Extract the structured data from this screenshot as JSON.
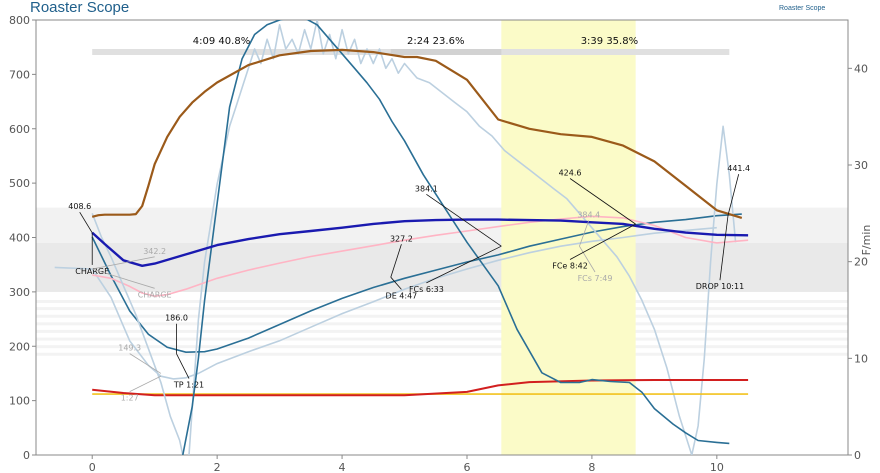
{
  "header": {
    "title": "Roaster Scope",
    "brand": "Roaster Scope"
  },
  "chart_data": {
    "type": "line",
    "x_ticks": [
      "0",
      "2",
      "4",
      "6",
      "8",
      "10"
    ],
    "y_left_ticks": [
      "0",
      "100",
      "200",
      "300",
      "400",
      "500",
      "600",
      "700",
      "800"
    ],
    "y_right_ticks": [
      "0",
      "10",
      "20",
      "30",
      "40"
    ],
    "y_left_label": "",
    "y_right_label": "F/min",
    "xlim": [
      -0.9,
      12.1
    ],
    "ylim_left": [
      0,
      800
    ],
    "ylim_right": [
      0,
      45
    ],
    "phases": {
      "bar_range": [
        0,
        10.2
      ],
      "labels": [
        {
          "text": "4:09  40.8%",
          "x": 2.07
        },
        {
          "text": "2:24  23.6%",
          "x": 5.5
        },
        {
          "text": "3:39  35.8%",
          "x": 8.28
        }
      ],
      "dry_end": 4.78,
      "highlight": [
        6.55,
        8.7
      ]
    },
    "colors": {
      "bean_temp": "#1a1ab0",
      "env_temp": "#ffb4c4",
      "exhaust": "#9b5a1a",
      "ror": "#2a6f95",
      "ror_ghost": "#bcd0e0",
      "heater": "#d21f1f",
      "fan": "#f2c21e",
      "highlight": "#fbfbc8"
    },
    "series": [
      {
        "key": "exhaust",
        "x": [
          0,
          0.1,
          0.2,
          0.4,
          0.6,
          0.7,
          0.8,
          0.9,
          1.0,
          1.2,
          1.4,
          1.6,
          1.8,
          2.0,
          2.5,
          3.0,
          3.5,
          4.0,
          4.5,
          5.0,
          5.2,
          5.5,
          6.0,
          6.5,
          7.0,
          7.5,
          8.0,
          8.5,
          9.0,
          9.5,
          10.0,
          10.4
        ],
        "y": [
          438,
          441,
          442,
          442,
          442,
          443,
          458,
          495,
          535,
          585,
          622,
          648,
          668,
          685,
          717,
          735,
          743,
          745,
          741,
          732,
          732,
          725,
          690,
          617,
          600,
          590,
          585,
          569,
          540,
          495,
          450,
          436
        ]
      },
      {
        "key": "bean_temp",
        "x": [
          0,
          0.2,
          0.5,
          0.8,
          1.0,
          1.5,
          2.0,
          2.5,
          3.0,
          3.5,
          4.0,
          4.5,
          5.0,
          5.5,
          6.0,
          6.5,
          7.0,
          7.5,
          8.0,
          8.5,
          9.0,
          9.5,
          10.0,
          10.5
        ],
        "y": [
          409,
          388,
          358,
          348,
          352,
          369,
          386,
          397,
          406,
          412,
          418,
          425,
          430,
          432,
          433,
          433,
          432,
          431,
          428,
          425,
          416,
          409,
          405,
          404
        ]
      },
      {
        "key": "env_temp",
        "x": [
          0,
          0.3,
          0.6,
          0.8,
          1.0,
          1.2,
          1.5,
          2.0,
          2.5,
          3.0,
          3.5,
          4.0,
          4.5,
          5.0,
          5.5,
          6.0,
          6.5,
          7.0,
          7.5,
          8.0,
          8.5,
          9.0,
          9.5,
          10.0,
          10.5
        ],
        "y": [
          331,
          325,
          310,
          298,
          292,
          295,
          305,
          325,
          340,
          353,
          365,
          375,
          385,
          395,
          404,
          412,
          420,
          428,
          434,
          439,
          436,
          422,
          400,
          390,
          395
        ]
      },
      {
        "key": "ror",
        "x": [
          1.45,
          1.6,
          1.7,
          1.8,
          2.0,
          2.2,
          2.4,
          2.6,
          2.8,
          3.0,
          3.2,
          3.4,
          3.6,
          3.8,
          4.0,
          4.2,
          4.4,
          4.6,
          4.8,
          5.0,
          5.3,
          5.6,
          6.0,
          6.5,
          6.8,
          7.2,
          7.5,
          7.8,
          8.0,
          8.3,
          8.6,
          8.8,
          9.0,
          9.3,
          9.5,
          9.7,
          10.0,
          10.2
        ],
        "y": [
          0,
          5,
          10,
          16,
          26,
          36,
          41,
          43.5,
          44.5,
          45,
          45.3,
          45.2,
          44.5,
          43,
          41.5,
          40,
          38.5,
          36.8,
          34.5,
          32.5,
          29,
          26,
          22,
          17.5,
          13,
          8.5,
          7.5,
          7.5,
          7.8,
          7.6,
          7.5,
          6.5,
          4.8,
          3.2,
          2.3,
          1.5,
          1.3,
          1.2
        ]
      },
      {
        "key": "ror_ghost",
        "x": [
          1.55,
          1.7,
          1.8,
          1.9,
          2.0,
          2.1,
          2.2,
          2.3,
          2.4,
          2.5,
          2.6,
          2.7,
          2.8,
          2.9,
          3.0,
          3.1,
          3.2,
          3.3,
          3.4,
          3.5,
          3.6,
          3.7,
          3.8,
          3.9,
          4.0,
          4.1,
          4.2,
          4.3,
          4.4,
          4.5,
          4.6,
          4.7,
          4.8,
          4.9,
          5.0,
          5.2,
          5.4,
          5.6,
          5.8,
          6.0,
          6.2,
          6.4,
          6.6,
          6.8,
          7.0,
          7.2,
          7.4,
          7.6,
          7.8,
          8.0,
          8.2,
          8.4,
          8.6,
          8.8,
          9.0,
          9.2,
          9.4,
          9.6,
          9.7,
          9.8,
          9.9,
          10.0,
          10.1,
          10.2,
          10.3
        ],
        "y": [
          0,
          14,
          20,
          24,
          28,
          31,
          34,
          36,
          38,
          40,
          42,
          40.5,
          43,
          41,
          44.5,
          42,
          43,
          41.5,
          44,
          42,
          45,
          41.5,
          43.5,
          41,
          44,
          41.5,
          43,
          40.5,
          42,
          40.5,
          42,
          40,
          41,
          39.5,
          40.5,
          39,
          38.5,
          37.5,
          36.5,
          35.5,
          34,
          33,
          31.5,
          30.5,
          29.5,
          28.5,
          27.5,
          26.5,
          25,
          23.5,
          22,
          20.5,
          18.5,
          16,
          13,
          9,
          4,
          0,
          3,
          10,
          20,
          28,
          34,
          29,
          22
        ]
      },
      {
        "key": "heater",
        "x": [
          0,
          0.5,
          1.0,
          2.0,
          3.0,
          4.0,
          5.0,
          6.0,
          6.5,
          7.0,
          8.0,
          9.0,
          10.0,
          10.5
        ],
        "y": [
          120,
          114,
          110,
          110,
          110,
          110,
          110,
          116,
          128,
          134,
          137,
          138,
          138,
          138
        ]
      },
      {
        "key": "fan",
        "x": [
          0,
          10.5
        ],
        "y": [
          112,
          112
        ]
      },
      {
        "key": "ror_mirror",
        "x": [
          1.45,
          1.4,
          1.25,
          1.1,
          0.9,
          0.7,
          0.5,
          0.3,
          0.15,
          0
        ],
        "y": [
          0,
          1.5,
          4,
          7.5,
          11,
          14.5,
          17.5,
          20.5,
          22.5,
          25
        ]
      }
    ],
    "bt_projection": {
      "x": [
        0,
        0.3,
        0.6,
        0.9,
        1.2,
        1.5,
        1.8,
        2.0,
        2.5,
        3.0,
        3.5,
        4.0,
        4.5,
        5.0,
        5.5,
        6.0,
        6.5,
        7.0,
        7.5,
        8.0,
        8.5,
        9.0,
        9.5,
        10.0,
        10.4
      ],
      "y": [
        401,
        330,
        265,
        222,
        198,
        189,
        190,
        195,
        215,
        240,
        265,
        288,
        308,
        325,
        340,
        355,
        368,
        384,
        397,
        410,
        420,
        428,
        433,
        440,
        443
      ]
    },
    "bt_projection_ghost": {
      "x": [
        -0.6,
        0.0,
        0.3,
        0.6,
        0.9,
        1.1,
        1.3,
        1.5,
        1.7,
        2.0,
        2.5,
        3.0,
        3.5,
        4.0,
        4.5,
        5.0,
        5.5,
        6.0,
        6.5,
        7.0,
        7.5,
        8.0,
        8.5,
        9.0,
        9.5,
        10.0
      ],
      "y": [
        345,
        342,
        290,
        210,
        165,
        145,
        140,
        142,
        150,
        168,
        190,
        210,
        235,
        260,
        282,
        305,
        325,
        342,
        358,
        372,
        384,
        393,
        400,
        408,
        413,
        418
      ]
    },
    "annotations": [
      {
        "id": "charge_value",
        "text": "408.6",
        "x": -0.2,
        "y": 452,
        "style": "solid",
        "ax": 0,
        "ay": 408.6
      },
      {
        "id": "charge_label",
        "text": "CHARGE",
        "x": 0.0,
        "y": 333,
        "style": "solid",
        "ax": 0,
        "ay": 408.6
      },
      {
        "id": "charge_ghost_value",
        "text": "342.2",
        "x": 1.0,
        "y": 370,
        "style": "ghost",
        "ax": 0,
        "ay": 342
      },
      {
        "id": "charge_ghost_label",
        "text": "CHARGE",
        "x": 1.0,
        "y": 290,
        "style": "ghost",
        "ax": 0,
        "ay": 342
      },
      {
        "id": "tp_value",
        "text": "186.0",
        "x": 1.35,
        "y": 247,
        "style": "solid",
        "ax": 1.35,
        "ay": 186
      },
      {
        "id": "tp_label",
        "text": "TP 1:21",
        "x": 1.55,
        "y": 124,
        "style": "solid",
        "ax": 1.35,
        "ay": 186
      },
      {
        "id": "tp_ghost_value",
        "text": "149.3",
        "x": 0.6,
        "y": 192,
        "style": "ghost",
        "ax": 1.1,
        "ay": 150
      },
      {
        "id": "tp_ghost_label",
        "text": "1:27",
        "x": 0.6,
        "y": 100,
        "style": "ghost",
        "ax": 1.1,
        "ay": 145
      },
      {
        "id": "de_value",
        "text": "327.2",
        "x": 4.95,
        "y": 393,
        "style": "solid",
        "ax": 4.78,
        "ay": 327
      },
      {
        "id": "de_label",
        "text": "DE 4:47",
        "x": 4.95,
        "y": 288,
        "style": "solid",
        "ax": 4.78,
        "ay": 327
      },
      {
        "id": "fcs_value",
        "text": "384.1",
        "x": 5.35,
        "y": 485,
        "style": "solid",
        "ax": 6.55,
        "ay": 384
      },
      {
        "id": "fcs_label",
        "text": "FCs 6:33",
        "x": 5.35,
        "y": 300,
        "style": "solid",
        "ax": 6.55,
        "ay": 384
      },
      {
        "id": "fcs_ghost_value",
        "text": "384.4",
        "x": 7.95,
        "y": 437,
        "style": "ghost",
        "ax": 7.8,
        "ay": 384
      },
      {
        "id": "fcs_ghost_label",
        "text": "FCs 7:49",
        "x": 8.05,
        "y": 320,
        "style": "ghost",
        "ax": 7.8,
        "ay": 384
      },
      {
        "id": "fce_value",
        "text": "424.6",
        "x": 7.65,
        "y": 514,
        "style": "solid",
        "ax": 8.7,
        "ay": 424.6
      },
      {
        "id": "fce_label",
        "text": "FCe 8:42",
        "x": 7.65,
        "y": 343,
        "style": "solid",
        "ax": 8.7,
        "ay": 424.6
      },
      {
        "id": "drop_value",
        "text": "441.4",
        "x": 10.35,
        "y": 522,
        "style": "solid",
        "ax": 10.18,
        "ay": 441.4
      },
      {
        "id": "drop_label",
        "text": "DROP 10:11",
        "x": 10.05,
        "y": 305,
        "style": "solid",
        "ax": 10.18,
        "ay": 441.4
      }
    ]
  }
}
